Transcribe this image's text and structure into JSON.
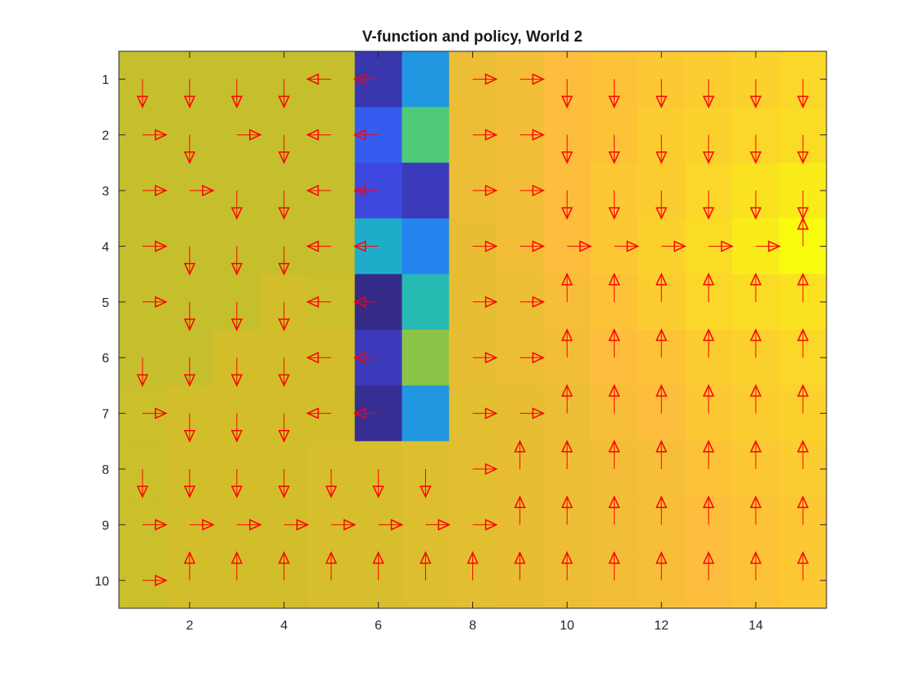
{
  "chart_data": {
    "type": "heatmap",
    "title": "V-function and policy, World 2",
    "xlabel": "",
    "ylabel": "",
    "xlim": [
      0.5,
      15.5
    ],
    "ylim": [
      0.5,
      10.5
    ],
    "y_reversed": true,
    "grid": false,
    "xticks": [
      2,
      4,
      6,
      8,
      10,
      12,
      14
    ],
    "yticks": [
      1,
      2,
      3,
      4,
      5,
      6,
      7,
      8,
      9,
      10
    ],
    "colormap": "parula",
    "color_scale": "relative value (0 = dark blue, 1 = yellow)",
    "values": [
      [
        0.78,
        0.78,
        0.78,
        0.78,
        0.78,
        0.06,
        0.38,
        0.85,
        0.86,
        0.88,
        0.89,
        0.9,
        0.91,
        0.92,
        0.93
      ],
      [
        0.78,
        0.78,
        0.78,
        0.78,
        0.78,
        0.2,
        0.62,
        0.85,
        0.86,
        0.88,
        0.89,
        0.91,
        0.92,
        0.93,
        0.94
      ],
      [
        0.78,
        0.78,
        0.78,
        0.78,
        0.78,
        0.14,
        0.08,
        0.85,
        0.86,
        0.88,
        0.9,
        0.91,
        0.93,
        0.95,
        0.97
      ],
      [
        0.78,
        0.78,
        0.78,
        0.78,
        0.78,
        0.46,
        0.32,
        0.84,
        0.86,
        0.88,
        0.9,
        0.92,
        0.94,
        0.97,
        1.0
      ],
      [
        0.78,
        0.78,
        0.78,
        0.8,
        0.79,
        0.0,
        0.52,
        0.84,
        0.85,
        0.87,
        0.89,
        0.91,
        0.93,
        0.94,
        0.95
      ],
      [
        0.78,
        0.78,
        0.8,
        0.8,
        0.8,
        0.08,
        0.7,
        0.84,
        0.85,
        0.86,
        0.88,
        0.89,
        0.91,
        0.92,
        0.93
      ],
      [
        0.79,
        0.8,
        0.8,
        0.8,
        0.8,
        0.02,
        0.38,
        0.83,
        0.84,
        0.85,
        0.87,
        0.88,
        0.9,
        0.91,
        0.92
      ],
      [
        0.79,
        0.8,
        0.8,
        0.8,
        0.81,
        0.81,
        0.82,
        0.83,
        0.84,
        0.85,
        0.86,
        0.87,
        0.89,
        0.9,
        0.91
      ],
      [
        0.79,
        0.8,
        0.8,
        0.8,
        0.81,
        0.81,
        0.82,
        0.83,
        0.84,
        0.85,
        0.86,
        0.87,
        0.88,
        0.89,
        0.9
      ],
      [
        0.79,
        0.8,
        0.8,
        0.8,
        0.81,
        0.81,
        0.82,
        0.83,
        0.84,
        0.85,
        0.86,
        0.87,
        0.88,
        0.89,
        0.9
      ]
    ],
    "policy_note": "U=up, D=down, L=left, R=right; null = no arrow",
    "policy": [
      [
        "D",
        "D",
        "D",
        "D",
        "L",
        "L",
        null,
        "R",
        "R",
        "D",
        "D",
        "D",
        "D",
        "D",
        "D"
      ],
      [
        "R",
        "D",
        "R",
        "D",
        "L",
        "L",
        null,
        "R",
        "R",
        "D",
        "D",
        "D",
        "D",
        "D",
        "D"
      ],
      [
        "R",
        "R",
        "D",
        "D",
        "L",
        "L",
        null,
        "R",
        "R",
        "D",
        "D",
        "D",
        "D",
        "D",
        "D"
      ],
      [
        "R",
        "D",
        "D",
        "D",
        "L",
        "L",
        null,
        "R",
        "R",
        "R",
        "R",
        "R",
        "R",
        "R",
        "U"
      ],
      [
        "R",
        "D",
        "D",
        "D",
        "L",
        "L",
        null,
        "R",
        "R",
        "U",
        "U",
        "U",
        "U",
        "U",
        "U"
      ],
      [
        "D",
        "D",
        "D",
        "D",
        "L",
        "L",
        null,
        "R",
        "R",
        "U",
        "U",
        "U",
        "U",
        "U",
        "U"
      ],
      [
        "R",
        "D",
        "D",
        "D",
        "L",
        "L",
        null,
        "R",
        "R",
        "U",
        "U",
        "U",
        "U",
        "U",
        "U"
      ],
      [
        "D",
        "D",
        "D",
        "D",
        "D",
        "D",
        "D",
        "R",
        "U",
        "U",
        "U",
        "U",
        "U",
        "U",
        "U"
      ],
      [
        "R",
        "R",
        "R",
        "R",
        "R",
        "R",
        "R",
        "R",
        "U",
        "U",
        "U",
        "U",
        "U",
        "U",
        "U"
      ],
      [
        "R",
        "U",
        "U",
        "U",
        "U",
        "U",
        "U",
        "U",
        "U",
        "U",
        "U",
        "U",
        "U",
        "U",
        "U"
      ]
    ],
    "arrow_color": "#ff0000"
  }
}
